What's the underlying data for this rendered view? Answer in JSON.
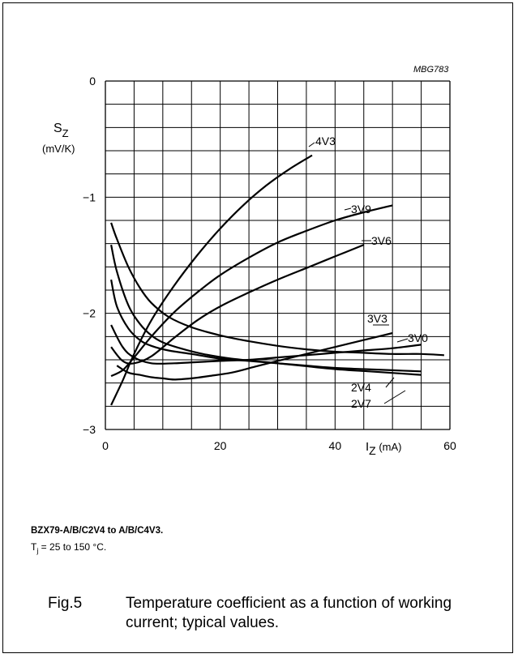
{
  "figure_code": "MBG783",
  "caption": {
    "device": "BZX79-A/B/C2V4 to A/B/C4V3.",
    "condition_T": "T",
    "condition_sub": "j",
    "condition_rest": " = 25 to 150 °C.",
    "fig_number": "Fig.5",
    "fig_text": "Temperature coefficient as a function of working current; typical values."
  },
  "chart_data": {
    "type": "line",
    "title": "",
    "ylabel_main": "S",
    "ylabel_sub": "Z",
    "ylabel_unit": "(mV/K)",
    "xlabel_main": "I",
    "xlabel_sub": "Z",
    "xlabel_unit": " (mA)",
    "xlim": [
      0,
      60
    ],
    "ylim": [
      -3,
      0
    ],
    "grid": true,
    "x_ticks": [
      {
        "value": 0,
        "label": "0"
      },
      {
        "value": 20,
        "label": "20"
      },
      {
        "value": 40,
        "label": "40"
      },
      {
        "value": 60,
        "label": "60"
      }
    ],
    "y_ticks": [
      {
        "value": 0,
        "label": "0"
      },
      {
        "value": -1,
        "label": "−1"
      },
      {
        "value": -2,
        "label": "−2"
      },
      {
        "value": -3,
        "label": "−3"
      }
    ],
    "series": [
      {
        "name": "4V3",
        "x": [
          1,
          3,
          5,
          8,
          12,
          16,
          20,
          24,
          28,
          32,
          36
        ],
        "y": [
          -2.79,
          -2.58,
          -2.35,
          -2.06,
          -1.76,
          -1.5,
          -1.27,
          -1.07,
          -0.9,
          -0.76,
          -0.64
        ]
      },
      {
        "name": "3V9",
        "x": [
          1,
          3,
          5,
          8,
          12,
          16,
          20,
          25,
          30,
          35,
          40,
          45,
          50
        ],
        "y": [
          -2.54,
          -2.49,
          -2.38,
          -2.2,
          -1.99,
          -1.82,
          -1.67,
          -1.52,
          -1.39,
          -1.29,
          -1.2,
          -1.13,
          -1.07
        ]
      },
      {
        "name": "3V6",
        "x": [
          1,
          3,
          5,
          8,
          12,
          16,
          20,
          25,
          30,
          35,
          40,
          45
        ],
        "y": [
          -2.29,
          -2.41,
          -2.43,
          -2.37,
          -2.21,
          -2.06,
          -1.94,
          -1.82,
          -1.71,
          -1.61,
          -1.51,
          -1.41
        ]
      },
      {
        "name": "3V3",
        "x": [
          2,
          4,
          6,
          8,
          10,
          12,
          15,
          18,
          22,
          26,
          30,
          35,
          40,
          45,
          50
        ],
        "y": [
          -2.45,
          -2.51,
          -2.53,
          -2.55,
          -2.56,
          -2.57,
          -2.56,
          -2.54,
          -2.51,
          -2.46,
          -2.41,
          -2.35,
          -2.29,
          -2.23,
          -2.17
        ]
      },
      {
        "name": "3V0",
        "x": [
          1,
          3,
          5,
          8,
          12,
          16,
          20,
          25,
          30,
          35,
          40,
          45,
          50,
          55
        ],
        "y": [
          -2.1,
          -2.29,
          -2.38,
          -2.43,
          -2.43,
          -2.42,
          -2.41,
          -2.4,
          -2.38,
          -2.36,
          -2.34,
          -2.32,
          -2.3,
          -2.27
        ]
      },
      {
        "name": "2V4",
        "x": [
          1,
          2,
          4,
          6,
          8,
          11,
          15,
          20,
          25,
          30,
          35,
          40,
          45,
          50,
          55,
          59
        ],
        "y": [
          -1.22,
          -1.36,
          -1.6,
          -1.78,
          -1.91,
          -2.03,
          -2.12,
          -2.19,
          -2.24,
          -2.28,
          -2.31,
          -2.33,
          -2.34,
          -2.35,
          -2.35,
          -2.36
        ]
      },
      {
        "name": "2V7",
        "x": [
          1,
          2,
          4,
          6,
          8,
          10,
          13,
          17,
          22,
          28,
          34,
          40,
          46,
          52,
          55
        ],
        "y": [
          -1.41,
          -1.64,
          -1.93,
          -2.09,
          -2.19,
          -2.25,
          -2.3,
          -2.35,
          -2.39,
          -2.42,
          -2.45,
          -2.48,
          -2.5,
          -2.52,
          -2.53
        ]
      },
      {
        "name": "",
        "x": [
          1,
          2,
          4,
          6,
          8,
          11,
          15,
          20,
          25,
          30,
          35,
          40,
          45,
          50,
          55
        ],
        "y": [
          -1.71,
          -1.94,
          -2.13,
          -2.23,
          -2.28,
          -2.32,
          -2.35,
          -2.39,
          -2.41,
          -2.43,
          -2.45,
          -2.47,
          -2.48,
          -2.49,
          -2.5
        ]
      }
    ]
  }
}
